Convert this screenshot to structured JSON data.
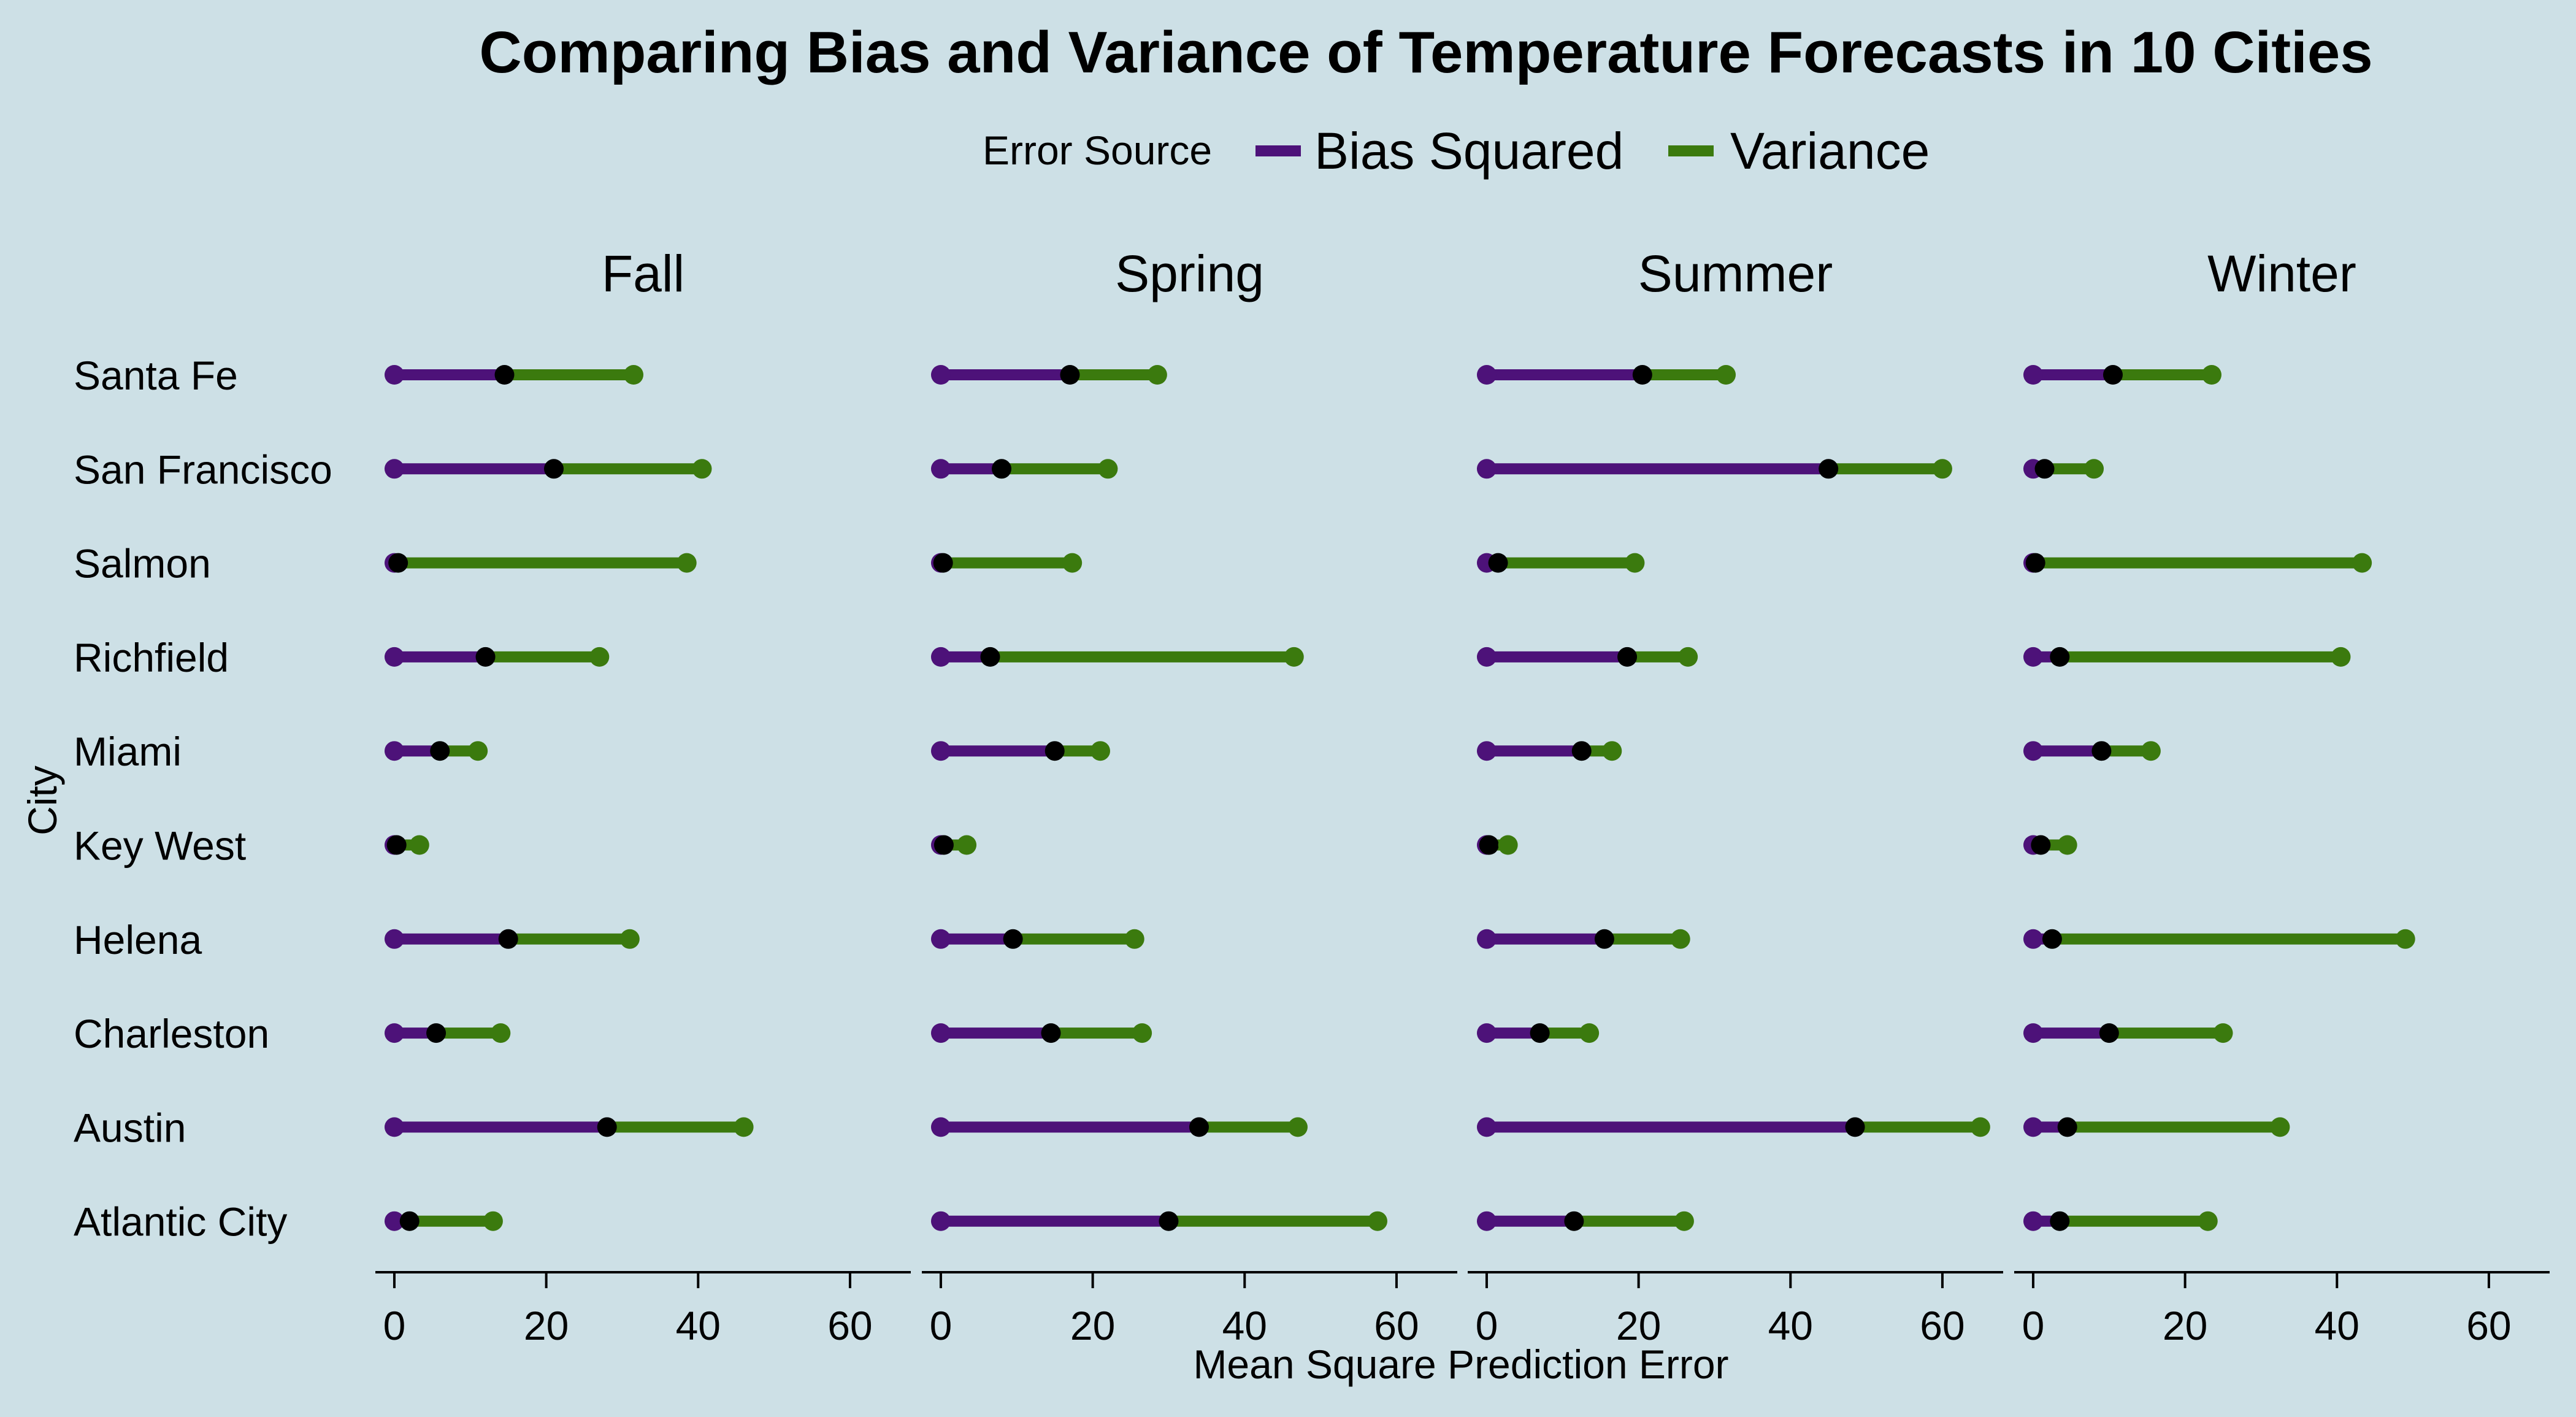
{
  "chart_data": {
    "type": "dumbbell",
    "title": "Comparing Bias and Variance of Temperature Forecasts in 10 Cities",
    "xlabel": "Mean Square Prediction Error",
    "ylabel": "City",
    "xlim": [
      -2.5,
      68
    ],
    "xticks": [
      0,
      20,
      40,
      60
    ],
    "legend": {
      "title": "Error Source",
      "position": "top",
      "entries": [
        "Bias Squared",
        "Variance"
      ]
    },
    "colors": {
      "bias": "#4d1279",
      "variance": "#3b7a0e",
      "junction": "#000000",
      "background": "#cde0e6"
    },
    "cities": [
      "Santa Fe",
      "San Francisco",
      "Salmon",
      "Richfield",
      "Miami",
      "Key West",
      "Helena",
      "Charleston",
      "Austin",
      "Atlantic City"
    ],
    "facets": [
      {
        "season": "Fall",
        "bias_squared": [
          14.5,
          21,
          0.5,
          12,
          6,
          0.3,
          15,
          5.5,
          28,
          2
        ],
        "variance": [
          17,
          19.5,
          38,
          15,
          5,
          3,
          16,
          8.5,
          18,
          11
        ]
      },
      {
        "season": "Spring",
        "bias_squared": [
          17,
          8,
          0.3,
          6.5,
          15,
          0.4,
          9.5,
          14.5,
          34,
          30
        ],
        "variance": [
          11.5,
          14,
          17,
          40,
          6,
          3,
          16,
          12,
          13,
          27.5
        ]
      },
      {
        "season": "Summer",
        "bias_squared": [
          20.5,
          45,
          1.5,
          18.5,
          12.5,
          0.3,
          15.5,
          7,
          48.5,
          11.5
        ],
        "variance": [
          11,
          15,
          18,
          8,
          4,
          2.5,
          10,
          6.5,
          16.5,
          14.5
        ]
      },
      {
        "season": "Winter",
        "bias_squared": [
          10.5,
          1.5,
          0.3,
          3.5,
          9,
          1,
          2.5,
          10,
          4.5,
          3.5
        ],
        "variance": [
          13,
          6.5,
          43,
          37,
          6.5,
          3.5,
          46.5,
          15,
          28,
          19.5
        ]
      }
    ]
  }
}
